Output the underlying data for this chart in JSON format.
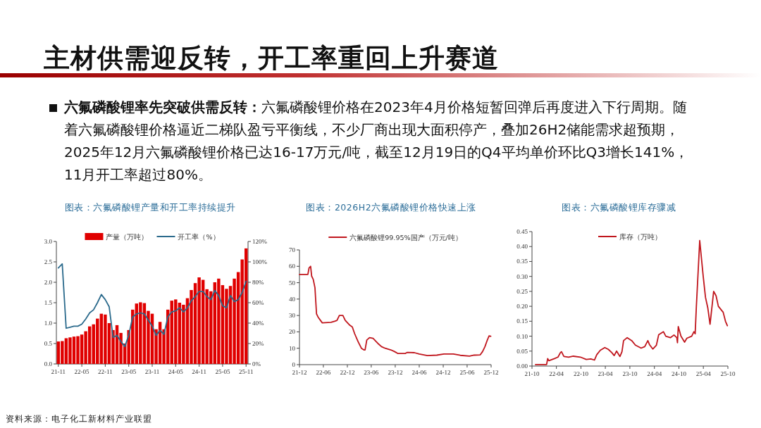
{
  "chart_data": [
    {
      "type": "other",
      "title": "主材供需迎反转，开工率重回上升赛道",
      "annotations": [
        "六氟磷酸锂率先突破供需反转：",
        "六氟磷酸锂价格在2023年4月价格短暂回弹后再度进入下行周期。随着六氟磷酸锂价格逼近二梯队盈亏平衡线，不少厂商出现大面积停产，叠加26H2储能需求超预期，2025年12月六氟磷酸锂价格已达16-17万元/吨，截至12月19日的Q4平均单价环比Q3增长141%，11月开工率超过80%。",
        "资料来源：电子化工新材料产业联盟"
      ]
    },
    {
      "type": "bar",
      "title": "图表：六氟磷酸锂产量和开工率持续提升",
      "legend": "top",
      "categories": [
        "21-11",
        null,
        null,
        null,
        null,
        null,
        "22-05",
        null,
        null,
        null,
        null,
        null,
        "22-11",
        null,
        null,
        null,
        null,
        null,
        "23-05",
        null,
        null,
        null,
        null,
        null,
        "23-11",
        null,
        null,
        null,
        null,
        null,
        "24-05",
        null,
        null,
        null,
        null,
        null,
        "24-11",
        null,
        null,
        null,
        null,
        null,
        "25-05",
        null,
        null,
        null,
        null,
        null,
        "25-11"
      ],
      "ylim": [
        0,
        3
      ],
      "yticks": [
        {
          "value": 0,
          "label": "0.0"
        },
        {
          "value": 0.5,
          "label": "0.5"
        },
        {
          "value": 1,
          "label": "1.0"
        },
        {
          "value": 1.5,
          "label": "1.5"
        },
        {
          "value": 2,
          "label": "2.0"
        },
        {
          "value": 2.5,
          "label": "2.5"
        },
        {
          "value": 3,
          "label": "3.0"
        }
      ],
      "y2lim": [
        0,
        120
      ],
      "y2ticks": [
        {
          "value": 0,
          "label": "0%"
        },
        {
          "value": 20,
          "label": "20%"
        },
        {
          "value": 40,
          "label": "40%"
        },
        {
          "value": 60,
          "label": "60%"
        },
        {
          "value": 80,
          "label": "80%"
        },
        {
          "value": 100,
          "label": "100%"
        },
        {
          "value": 120,
          "label": "120%"
        }
      ],
      "series": [
        {
          "name": "产量（万吨）",
          "type": "bar",
          "color": "#e00000",
          "values": [
            0.55,
            0.56,
            0.63,
            0.65,
            0.67,
            0.68,
            0.72,
            0.8,
            0.92,
            0.97,
            1.11,
            1.23,
            1.21,
            1.0,
            0.83,
            0.95,
            0.76,
            0.5,
            0.83,
            1.33,
            1.48,
            1.51,
            1.49,
            1.3,
            1.23,
            0.85,
            1.03,
            0.85,
            1.33,
            1.55,
            1.58,
            1.5,
            1.45,
            1.61,
            1.81,
            1.98,
            2.12,
            2.06,
            1.83,
            1.78,
            2.0,
            2.09,
            1.93,
            1.84,
            1.91,
            2.09,
            2.25,
            2.56,
            2.83
          ]
        },
        {
          "name": "开工率（%）",
          "type": "line",
          "axis": "y2",
          "color": "#2b6a8c",
          "values": [
            94,
            98,
            35,
            36,
            37,
            37,
            39,
            44,
            50,
            53,
            60,
            68,
            63,
            56,
            26,
            28,
            22,
            17,
            28,
            46,
            49,
            50,
            49,
            43,
            37,
            28,
            33,
            29,
            46,
            51,
            52,
            55,
            51,
            55,
            62,
            66,
            71,
            71,
            66,
            63,
            72,
            67,
            57,
            55,
            67,
            61,
            63,
            70,
            81
          ]
        }
      ]
    },
    {
      "type": "line",
      "title": "图表：2026H2六氟磷酸锂价格快速上涨",
      "legend": "top",
      "x": [
        "2021-12-01",
        "2022-02-03",
        "2022-02-12",
        "2022-02-24",
        "2022-03-04",
        "2022-03-16",
        "2022-03-29",
        "2022-04-10",
        "2022-04-22",
        "2022-05-10",
        "2022-05-24",
        "2022-07-29",
        "2022-08-26",
        "2022-09-13",
        "2022-10-01",
        "2022-10-28",
        "2022-11-15",
        "2022-12-20",
        "2023-01-08",
        "2023-01-25",
        "2023-02-21",
        "2023-03-18",
        "2023-04-06",
        "2023-04-15",
        "2023-04-28",
        "2023-05-19",
        "2023-06-15",
        "2023-07-21",
        "2023-08-18",
        "2023-09-15",
        "2023-10-28",
        "2023-11-25",
        "2023-12-22",
        "2024-02-15",
        "2024-03-03",
        "2024-04-25",
        "2024-06-01",
        "2024-08-02",
        "2024-10-13",
        "2024-12-06",
        "2025-02-16",
        "2025-04-10",
        "2025-06-19",
        "2025-07-25",
        "2025-09-09",
        "2025-09-27",
        "2025-10-15",
        "2025-11-02",
        "2025-11-15",
        "2025-11-28"
      ],
      "xlim": [
        "2021-12",
        "2025-12"
      ],
      "xticks": [
        {
          "value": "2021-12",
          "label": "21-12"
        },
        {
          "value": "2022-06",
          "label": "22-06"
        },
        {
          "value": "2022-12",
          "label": "22-12"
        },
        {
          "value": "2023-06",
          "label": "23-06"
        },
        {
          "value": "2023-12",
          "label": "23-12"
        },
        {
          "value": "2024-06",
          "label": "24-06"
        },
        {
          "value": "2024-12",
          "label": "24-12"
        },
        {
          "value": "2025-06",
          "label": "25-06"
        },
        {
          "value": "2025-12",
          "label": "25-12"
        }
      ],
      "ylim": [
        0,
        70
      ],
      "yticks": [
        0,
        10,
        20,
        30,
        40,
        50,
        60,
        70
      ],
      "series": [
        {
          "name": "六氟磷酸锂99.95%国产（万元/吨）",
          "color": "#c0161d",
          "values": [
            55,
            55,
            59,
            60,
            54,
            52,
            47,
            31,
            29,
            27,
            25.5,
            25.8,
            26.5,
            27,
            30,
            30,
            27,
            24,
            23,
            19,
            14,
            10,
            9,
            9,
            15,
            16.5,
            16,
            13,
            11,
            10,
            9,
            8,
            6.8,
            6.8,
            7.5,
            7.3,
            6.5,
            5.5,
            5.8,
            6.5,
            6.5,
            5.7,
            5.2,
            5.8,
            6,
            8,
            11,
            15,
            17.5,
            17.3
          ]
        }
      ]
    },
    {
      "type": "line",
      "title": "图表：六氟磷酸锂库存骤减",
      "legend": "top",
      "x": [
        "2021-10-27",
        "2022-01-18",
        "2022-01-26",
        "2022-02-04",
        "2022-03-18",
        "2022-04-13",
        "2022-05-01",
        "2022-05-09",
        "2022-05-27",
        "2022-07-01",
        "2022-08-05",
        "2022-09-27",
        "2022-11-10",
        "2022-12-14",
        "2023-01-10",
        "2023-01-27",
        "2023-02-23",
        "2023-03-28",
        "2023-04-23",
        "2023-05-19",
        "2023-06-06",
        "2023-06-24",
        "2023-07-19",
        "2023-08-03",
        "2023-08-15",
        "2023-09-11",
        "2023-10-15",
        "2023-11-11",
        "2023-12-24",
        "2024-01-20",
        "2024-02-12",
        "2024-02-24",
        "2024-03-20",
        "2024-04-16",
        "2024-05-03",
        "2024-06-07",
        "2024-06-25",
        "2024-07-29",
        "2024-08-25",
        "2024-09-15",
        "2024-09-20",
        "2024-09-26",
        "2024-10-16",
        "2024-11-12",
        "2024-11-29",
        "2025-01-04",
        "2025-01-21",
        "2025-01-30",
        "2025-02-08",
        "2025-03-05",
        "2025-03-31",
        "2025-04-17",
        "2025-05-04",
        "2025-05-21",
        "2025-06-17",
        "2025-07-05",
        "2025-07-22",
        "2025-08-27",
        "2025-09-13",
        "2025-09-27"
      ],
      "xlim": [
        "2021-10",
        "2025-10"
      ],
      "xticks": [
        {
          "value": "2021-10",
          "label": "21-10"
        },
        {
          "value": "2022-04",
          "label": "22-04"
        },
        {
          "value": "2022-10",
          "label": "22-10"
        },
        {
          "value": "2023-04",
          "label": "23-04"
        },
        {
          "value": "2023-10",
          "label": "23-10"
        },
        {
          "value": "2024-04",
          "label": "24-04"
        },
        {
          "value": "2024-10",
          "label": "24-10"
        },
        {
          "value": "2025-04",
          "label": "25-04"
        },
        {
          "value": "2025-10",
          "label": "25-10"
        }
      ],
      "ylim": [
        0,
        0.45
      ],
      "yticks": [
        {
          "value": 0,
          "label": "0.00"
        },
        {
          "value": 0.05,
          "label": "0.05"
        },
        {
          "value": 0.1,
          "label": "0.10"
        },
        {
          "value": 0.15,
          "label": "0.15"
        },
        {
          "value": 0.2,
          "label": "0.20"
        },
        {
          "value": 0.25,
          "label": "0.25"
        },
        {
          "value": 0.3,
          "label": "0.30"
        },
        {
          "value": 0.35,
          "label": "0.35"
        },
        {
          "value": 0.4,
          "label": "0.40"
        },
        {
          "value": 0.45,
          "label": "0.45"
        }
      ],
      "series": [
        {
          "name": "库存（万吨）",
          "color": "#c0161d",
          "values": [
            0.005,
            0.005,
            0.025,
            0.018,
            0.025,
            0.03,
            0.045,
            0.048,
            0.032,
            0.03,
            0.033,
            0.03,
            0.022,
            0.024,
            0.02,
            0.038,
            0.053,
            0.062,
            0.056,
            0.045,
            0.035,
            0.05,
            0.032,
            0.048,
            0.085,
            0.095,
            0.085,
            0.07,
            0.06,
            0.065,
            0.085,
            0.072,
            0.057,
            0.07,
            0.105,
            0.115,
            0.1,
            0.095,
            0.104,
            0.095,
            0.078,
            0.132,
            0.1,
            0.08,
            0.093,
            0.1,
            0.115,
            0.108,
            0.2,
            0.42,
            0.3,
            0.23,
            0.195,
            0.14,
            0.25,
            0.235,
            0.2,
            0.18,
            0.15,
            0.135
          ]
        }
      ]
    }
  ]
}
